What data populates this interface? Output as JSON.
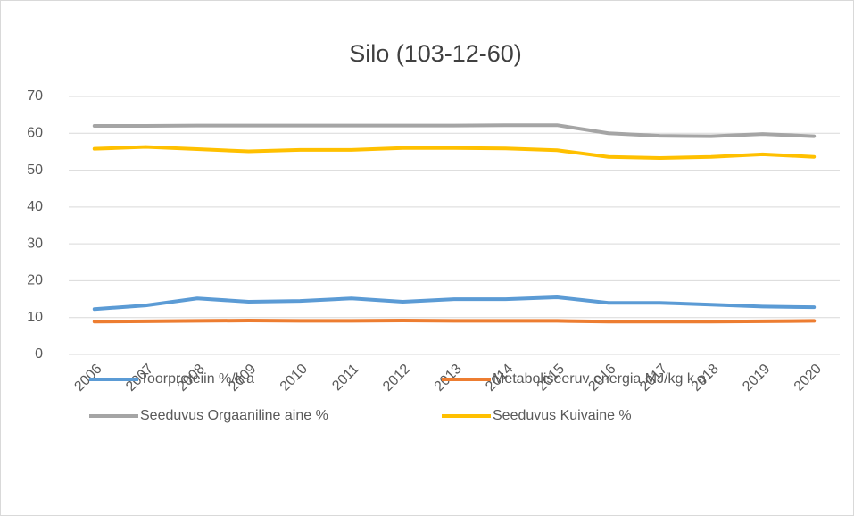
{
  "chart_data": {
    "type": "line",
    "title": "Silo (103-12-60)",
    "categories": [
      "2006",
      "2007",
      "2008",
      "2009",
      "2010",
      "2011",
      "2012",
      "2013",
      "2014",
      "2015",
      "2016",
      "2017",
      "2018",
      "2019",
      "2020"
    ],
    "series": [
      {
        "name": "Toorproteiin  %/k.a",
        "color": "#5b9bd5",
        "values": [
          12.3,
          13.3,
          15.2,
          14.3,
          14.5,
          15.2,
          14.3,
          15.0,
          15.0,
          15.5,
          14.0,
          14.0,
          13.5,
          13.0,
          12.8
        ]
      },
      {
        "name": "Metaboliseeruv energia MJ/kg k.a",
        "color": "#ed7d31",
        "values": [
          8.9,
          9.0,
          9.1,
          9.2,
          9.1,
          9.1,
          9.2,
          9.1,
          9.1,
          9.1,
          8.9,
          8.9,
          8.9,
          9.0,
          9.1
        ]
      },
      {
        "name": "Seeduvus Orgaaniline aine %",
        "color": "#a5a5a5",
        "values": [
          62.0,
          62.0,
          62.1,
          62.1,
          62.1,
          62.1,
          62.1,
          62.1,
          62.2,
          62.2,
          60.0,
          59.3,
          59.2,
          59.8,
          59.2
        ]
      },
      {
        "name": "Seeduvus Kuivaine %",
        "color": "#ffc000",
        "values": [
          55.8,
          56.3,
          55.7,
          55.1,
          55.5,
          55.5,
          56.0,
          56.0,
          55.9,
          55.4,
          53.6,
          53.3,
          53.6,
          54.3,
          53.6
        ]
      }
    ],
    "ylim": [
      0,
      70
    ],
    "yticks": [
      0,
      10,
      20,
      30,
      40,
      50,
      60,
      70
    ],
    "grid": true,
    "legend": "bottom"
  }
}
